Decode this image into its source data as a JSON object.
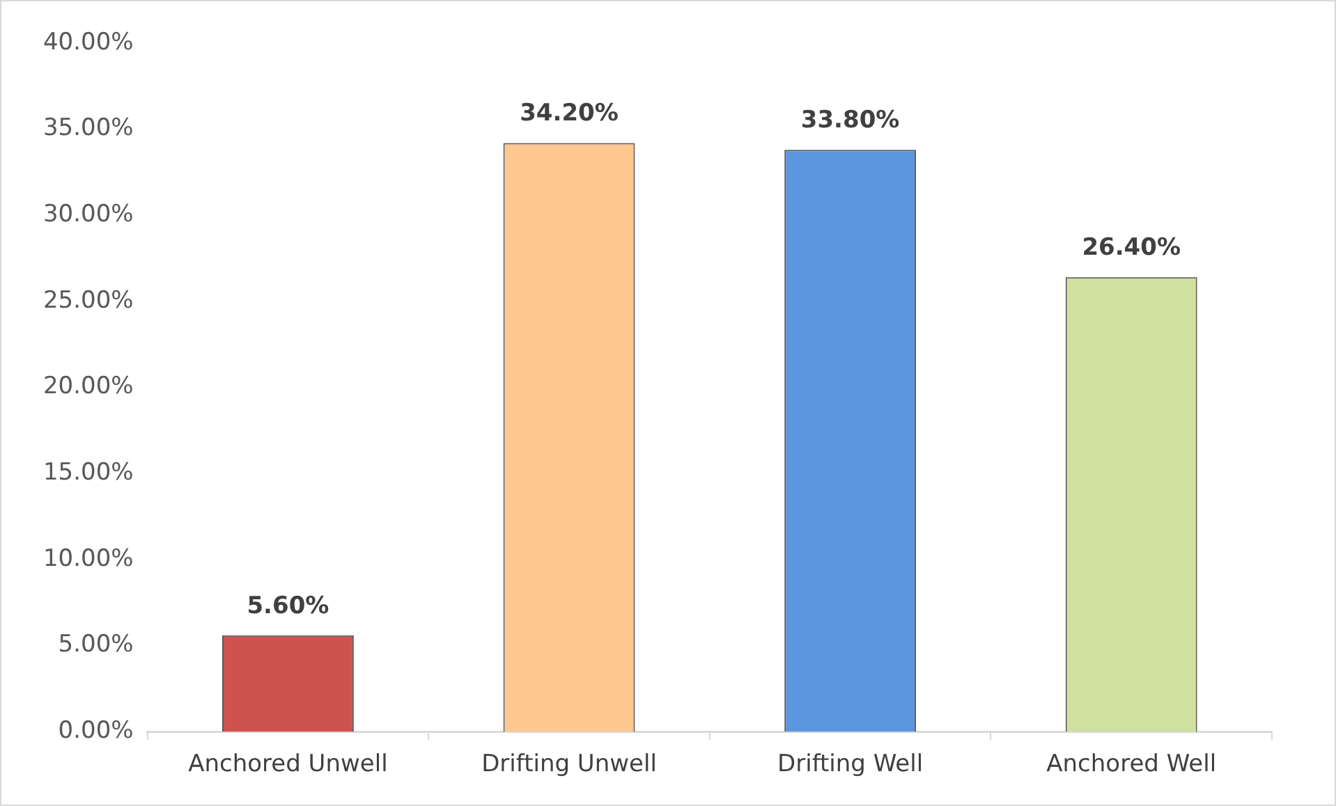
{
  "chart_data": {
    "type": "bar",
    "categories": [
      "Anchored Unwell",
      "Drifting Unwell",
      "Drifting Well",
      "Anchored Well"
    ],
    "values": [
      5.6,
      34.2,
      33.8,
      26.4
    ],
    "colors": [
      "#cd5250",
      "#ffc890",
      "#5b96de",
      "#cfe0a0"
    ],
    "value_labels": [
      "5.60%",
      "34.20%",
      "33.80%",
      "26.40%"
    ],
    "ylim": [
      0,
      40
    ],
    "yticks": [
      {
        "value": 0,
        "label": "0.00%"
      },
      {
        "value": 5,
        "label": "5.00%"
      },
      {
        "value": 10,
        "label": "10.00%"
      },
      {
        "value": 15,
        "label": "15.00%"
      },
      {
        "value": 20,
        "label": "20.00%"
      },
      {
        "value": 25,
        "label": "25.00%"
      },
      {
        "value": 30,
        "label": "30.00%"
      },
      {
        "value": 35,
        "label": "35.00%"
      },
      {
        "value": 40,
        "label": "40.00%"
      }
    ],
    "grid": false,
    "legend": false
  }
}
